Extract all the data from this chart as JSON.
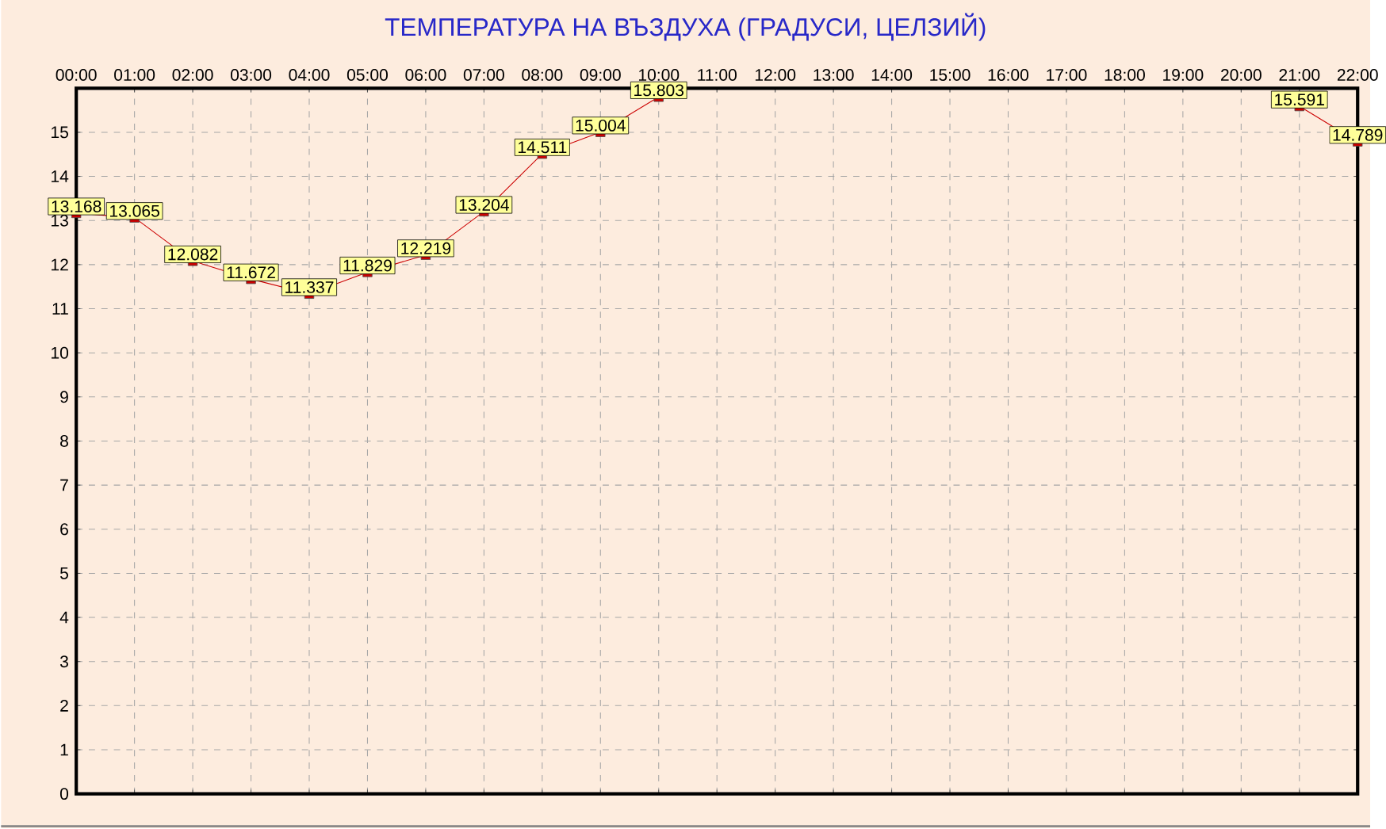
{
  "chart_data": {
    "type": "line",
    "title": "ТЕМПЕРАТУРА НА ВЪЗДУХА  (ГРАДУСИ, ЦЕЛЗИЙ)",
    "x": [
      0,
      1,
      2,
      3,
      4,
      5,
      6,
      7,
      8,
      9,
      10,
      11,
      12,
      13,
      14,
      15,
      16,
      17,
      18,
      19,
      20,
      21,
      22
    ],
    "series": [
      {
        "color": "#cc0000",
        "values": [
          13.168,
          13.065,
          12.082,
          11.672,
          11.337,
          11.829,
          12.219,
          13.204,
          14.511,
          15.004,
          15.803,
          null,
          null,
          null,
          null,
          null,
          null,
          null,
          null,
          null,
          null,
          15.591,
          14.789
        ]
      }
    ],
    "xlim": [
      0,
      22
    ],
    "xticks": [
      {
        "value": 0,
        "label": "00:00"
      },
      {
        "value": 1,
        "label": "01:00"
      },
      {
        "value": 2,
        "label": "02:00"
      },
      {
        "value": 3,
        "label": "03:00"
      },
      {
        "value": 4,
        "label": "04:00"
      },
      {
        "value": 5,
        "label": "05:00"
      },
      {
        "value": 6,
        "label": "06:00"
      },
      {
        "value": 7,
        "label": "07:00"
      },
      {
        "value": 8,
        "label": "08:00"
      },
      {
        "value": 9,
        "label": "09:00"
      },
      {
        "value": 10,
        "label": "10:00"
      },
      {
        "value": 11,
        "label": "11:00"
      },
      {
        "value": 12,
        "label": "12:00"
      },
      {
        "value": 13,
        "label": "13:00"
      },
      {
        "value": 14,
        "label": "14:00"
      },
      {
        "value": 15,
        "label": "15:00"
      },
      {
        "value": 16,
        "label": "16:00"
      },
      {
        "value": 17,
        "label": "17:00"
      },
      {
        "value": 18,
        "label": "18:00"
      },
      {
        "value": 19,
        "label": "19:00"
      },
      {
        "value": 20,
        "label": "20:00"
      },
      {
        "value": 21,
        "label": "21:00"
      },
      {
        "value": 22,
        "label": "22:00"
      }
    ],
    "ylim": [
      0,
      16
    ],
    "yticks": [
      0,
      1,
      2,
      3,
      4,
      5,
      6,
      7,
      8,
      9,
      10,
      11,
      12,
      13,
      14,
      15
    ],
    "grid": true,
    "marker": "square",
    "line_style": "solid",
    "data_labels": true
  }
}
